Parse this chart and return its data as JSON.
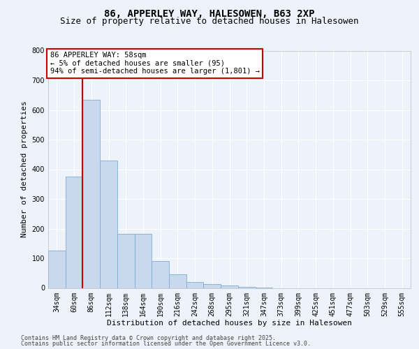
{
  "title_line1": "86, APPERLEY WAY, HALESOWEN, B63 2XP",
  "title_line2": "Size of property relative to detached houses in Halesowen",
  "xlabel": "Distribution of detached houses by size in Halesowen",
  "ylabel": "Number of detached properties",
  "bar_color": "#c8d9ee",
  "bar_edge_color": "#7aadd4",
  "vline_color": "#cc0000",
  "vline_x": 1.5,
  "categories": [
    "34sqm",
    "60sqm",
    "86sqm",
    "112sqm",
    "138sqm",
    "164sqm",
    "190sqm",
    "216sqm",
    "242sqm",
    "268sqm",
    "295sqm",
    "321sqm",
    "347sqm",
    "373sqm",
    "399sqm",
    "425sqm",
    "451sqm",
    "477sqm",
    "503sqm",
    "529sqm",
    "555sqm"
  ],
  "values": [
    125,
    375,
    635,
    430,
    183,
    183,
    90,
    45,
    20,
    12,
    8,
    3,
    1,
    0,
    0,
    0,
    0,
    0,
    0,
    0,
    0
  ],
  "ylim": [
    0,
    800
  ],
  "yticks": [
    0,
    100,
    200,
    300,
    400,
    500,
    600,
    700,
    800
  ],
  "annotation_title": "86 APPERLEY WAY: 58sqm",
  "annotation_line2": "← 5% of detached houses are smaller (95)",
  "annotation_line3": "94% of semi-detached houses are larger (1,801) →",
  "footnote_line1": "Contains HM Land Registry data © Crown copyright and database right 2025.",
  "footnote_line2": "Contains public sector information licensed under the Open Government Licence v3.0.",
  "bg_color": "#eef2fa",
  "plot_bg_color": "#eef2fa",
  "grid_color": "#ffffff",
  "title_fontsize": 10,
  "subtitle_fontsize": 9,
  "axis_label_fontsize": 8,
  "tick_fontsize": 7,
  "annotation_fontsize": 7.5,
  "footnote_fontsize": 6
}
